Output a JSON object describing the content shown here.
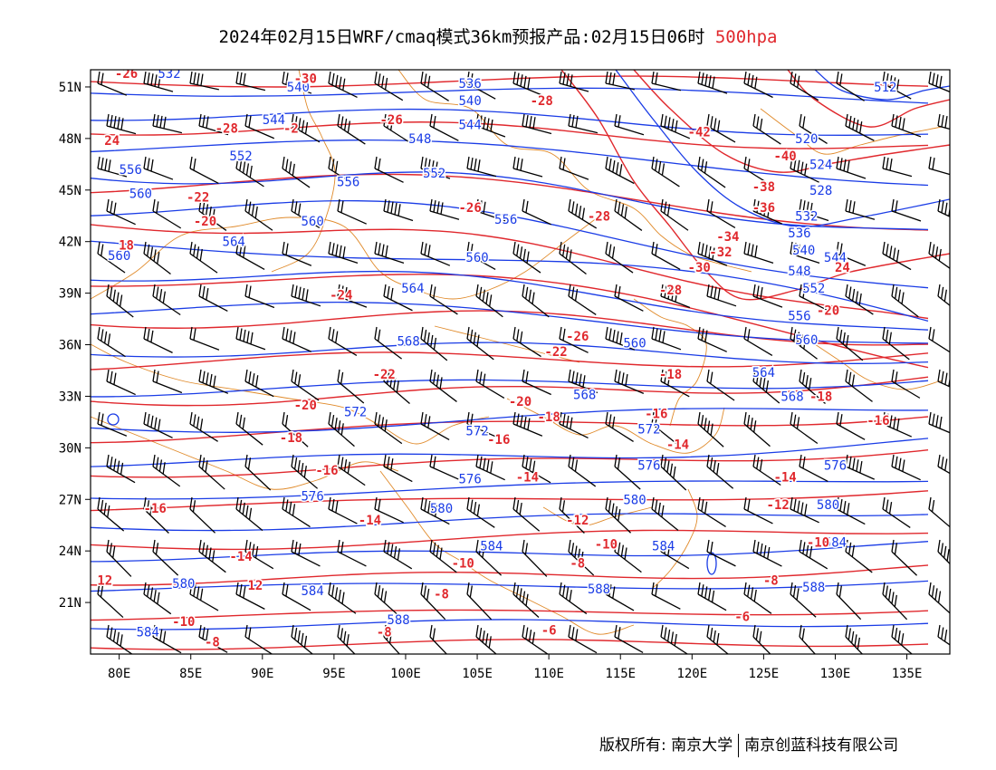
{
  "title": {
    "main": "2024年02月15日WRF/cmaq模式36km预报产品:02月15日06时",
    "level": "500hpa"
  },
  "footer": {
    "copyright_label": "版权所有:",
    "org1": "南京大学",
    "org2": "南京创蓝科技有限公司"
  },
  "colors": {
    "height_contour": "#1a3ce6",
    "temperature_contour": "#e0282d",
    "boundary": "#e08a2a",
    "wind_barb": "#000000"
  },
  "map": {
    "lon_range": [
      78,
      138
    ],
    "lat_range": [
      18,
      52
    ],
    "lon_ticks": [
      {
        "value": 80,
        "label": "80E"
      },
      {
        "value": 85,
        "label": "85E"
      },
      {
        "value": 90,
        "label": "90E"
      },
      {
        "value": 95,
        "label": "95E"
      },
      {
        "value": 100,
        "label": "100E"
      },
      {
        "value": 105,
        "label": "105E"
      },
      {
        "value": 110,
        "label": "110E"
      },
      {
        "value": 115,
        "label": "115E"
      },
      {
        "value": 120,
        "label": "120E"
      },
      {
        "value": 125,
        "label": "125E"
      },
      {
        "value": 130,
        "label": "130E"
      },
      {
        "value": 135,
        "label": "135E"
      }
    ],
    "lat_ticks": [
      {
        "value": 21,
        "label": "21N"
      },
      {
        "value": 24,
        "label": "24N"
      },
      {
        "value": 27,
        "label": "27N"
      },
      {
        "value": 30,
        "label": "30N"
      },
      {
        "value": 33,
        "label": "33N"
      },
      {
        "value": 36,
        "label": "36N"
      },
      {
        "value": 39,
        "label": "39N"
      },
      {
        "value": 42,
        "label": "42N"
      },
      {
        "value": 45,
        "label": "45N"
      },
      {
        "value": 48,
        "label": "48N"
      },
      {
        "value": 51,
        "label": "51N"
      }
    ],
    "height_labels": [
      {
        "lon": 83.5,
        "lat": 51.8,
        "text": "532"
      },
      {
        "lon": 92.5,
        "lat": 51.0,
        "text": "540"
      },
      {
        "lon": 104.5,
        "lat": 51.2,
        "text": "536"
      },
      {
        "lon": 133.5,
        "lat": 51.0,
        "text": "512"
      },
      {
        "lon": 90.8,
        "lat": 49.1,
        "text": "544"
      },
      {
        "lon": 104.5,
        "lat": 50.2,
        "text": "540"
      },
      {
        "lon": 101.0,
        "lat": 48.0,
        "text": "548"
      },
      {
        "lon": 104.5,
        "lat": 48.8,
        "text": "544"
      },
      {
        "lon": 88.5,
        "lat": 47.0,
        "text": "552"
      },
      {
        "lon": 80.8,
        "lat": 46.2,
        "text": "556"
      },
      {
        "lon": 81.5,
        "lat": 44.8,
        "text": "560"
      },
      {
        "lon": 96.0,
        "lat": 45.5,
        "text": "556"
      },
      {
        "lon": 102.0,
        "lat": 46.0,
        "text": "552"
      },
      {
        "lon": 93.5,
        "lat": 43.2,
        "text": "560"
      },
      {
        "lon": 107.0,
        "lat": 43.3,
        "text": "556"
      },
      {
        "lon": 88.0,
        "lat": 42.0,
        "text": "564"
      },
      {
        "lon": 80.0,
        "lat": 41.2,
        "text": "560"
      },
      {
        "lon": 105.0,
        "lat": 41.1,
        "text": "560"
      },
      {
        "lon": 100.5,
        "lat": 39.3,
        "text": "564"
      },
      {
        "lon": 100.2,
        "lat": 36.2,
        "text": "568"
      },
      {
        "lon": 116.0,
        "lat": 36.1,
        "text": "560"
      },
      {
        "lon": 128.0,
        "lat": 48.0,
        "text": "520"
      },
      {
        "lon": 129.0,
        "lat": 46.5,
        "text": "524"
      },
      {
        "lon": 129.0,
        "lat": 45.0,
        "text": "528"
      },
      {
        "lon": 128.0,
        "lat": 43.5,
        "text": "532"
      },
      {
        "lon": 127.5,
        "lat": 42.5,
        "text": "536"
      },
      {
        "lon": 127.8,
        "lat": 41.5,
        "text": "540"
      },
      {
        "lon": 130.0,
        "lat": 41.1,
        "text": "544"
      },
      {
        "lon": 127.5,
        "lat": 40.3,
        "text": "548"
      },
      {
        "lon": 128.5,
        "lat": 39.3,
        "text": "552"
      },
      {
        "lon": 127.5,
        "lat": 37.7,
        "text": "556"
      },
      {
        "lon": 128.0,
        "lat": 36.3,
        "text": "560"
      },
      {
        "lon": 125.0,
        "lat": 34.4,
        "text": "564"
      },
      {
        "lon": 127.0,
        "lat": 33.0,
        "text": "568"
      },
      {
        "lon": 112.5,
        "lat": 33.1,
        "text": "568"
      },
      {
        "lon": 96.5,
        "lat": 32.1,
        "text": "572"
      },
      {
        "lon": 105.0,
        "lat": 31.0,
        "text": "572"
      },
      {
        "lon": 117.0,
        "lat": 31.1,
        "text": "572"
      },
      {
        "lon": 117.0,
        "lat": 29.0,
        "text": "576"
      },
      {
        "lon": 130.0,
        "lat": 29.0,
        "text": "576"
      },
      {
        "lon": 93.5,
        "lat": 27.2,
        "text": "576"
      },
      {
        "lon": 104.5,
        "lat": 28.2,
        "text": "576"
      },
      {
        "lon": 102.5,
        "lat": 26.5,
        "text": "580"
      },
      {
        "lon": 116.0,
        "lat": 27.0,
        "text": "580"
      },
      {
        "lon": 129.5,
        "lat": 26.7,
        "text": "580"
      },
      {
        "lon": 106.0,
        "lat": 24.3,
        "text": "584"
      },
      {
        "lon": 118.0,
        "lat": 24.3,
        "text": "584"
      },
      {
        "lon": 130.0,
        "lat": 24.5,
        "text": "584"
      },
      {
        "lon": 84.5,
        "lat": 22.1,
        "text": "580"
      },
      {
        "lon": 93.5,
        "lat": 21.7,
        "text": "584"
      },
      {
        "lon": 113.5,
        "lat": 21.8,
        "text": "588"
      },
      {
        "lon": 128.5,
        "lat": 21.9,
        "text": "588"
      },
      {
        "lon": 99.5,
        "lat": 20.0,
        "text": "588"
      },
      {
        "lon": 82.0,
        "lat": 19.3,
        "text": "584"
      }
    ],
    "temp_labels": [
      {
        "lon": 80.5,
        "lat": 51.8,
        "text": "-26"
      },
      {
        "lon": 93.0,
        "lat": 51.5,
        "text": "-30"
      },
      {
        "lon": 109.5,
        "lat": 50.2,
        "text": "-28"
      },
      {
        "lon": 87.5,
        "lat": 48.6,
        "text": "-28"
      },
      {
        "lon": 92.0,
        "lat": 48.6,
        "text": "-2"
      },
      {
        "lon": 99.0,
        "lat": 49.1,
        "text": "-26"
      },
      {
        "lon": 79.5,
        "lat": 47.9,
        "text": "24"
      },
      {
        "lon": 85.5,
        "lat": 44.6,
        "text": "-22"
      },
      {
        "lon": 86.0,
        "lat": 43.2,
        "text": "-20"
      },
      {
        "lon": 80.5,
        "lat": 41.8,
        "text": "18"
      },
      {
        "lon": 95.5,
        "lat": 38.9,
        "text": "-24"
      },
      {
        "lon": 104.5,
        "lat": 44.0,
        "text": "-26"
      },
      {
        "lon": 120.5,
        "lat": 48.4,
        "text": "-42"
      },
      {
        "lon": 126.5,
        "lat": 47.0,
        "text": "-40"
      },
      {
        "lon": 125.0,
        "lat": 45.2,
        "text": "-38"
      },
      {
        "lon": 125.0,
        "lat": 44.0,
        "text": "-36"
      },
      {
        "lon": 122.5,
        "lat": 42.3,
        "text": "-34"
      },
      {
        "lon": 122.0,
        "lat": 41.4,
        "text": "-32"
      },
      {
        "lon": 120.5,
        "lat": 40.5,
        "text": "-30"
      },
      {
        "lon": 118.5,
        "lat": 39.2,
        "text": "-28"
      },
      {
        "lon": 113.5,
        "lat": 43.5,
        "text": "-28"
      },
      {
        "lon": 130.5,
        "lat": 40.5,
        "text": "24"
      },
      {
        "lon": 129.5,
        "lat": 38.0,
        "text": "-20"
      },
      {
        "lon": 129.0,
        "lat": 33.0,
        "text": "-18"
      },
      {
        "lon": 112.0,
        "lat": 36.5,
        "text": "-26"
      },
      {
        "lon": 110.5,
        "lat": 35.6,
        "text": "-22"
      },
      {
        "lon": 98.5,
        "lat": 34.3,
        "text": "-22"
      },
      {
        "lon": 118.5,
        "lat": 34.3,
        "text": "-18"
      },
      {
        "lon": 93.0,
        "lat": 32.5,
        "text": "-20"
      },
      {
        "lon": 108.0,
        "lat": 32.7,
        "text": "-20"
      },
      {
        "lon": 110.0,
        "lat": 31.8,
        "text": "-18"
      },
      {
        "lon": 117.5,
        "lat": 32.0,
        "text": "-16"
      },
      {
        "lon": 92.0,
        "lat": 30.6,
        "text": "-18"
      },
      {
        "lon": 106.5,
        "lat": 30.5,
        "text": "-16"
      },
      {
        "lon": 119.0,
        "lat": 30.2,
        "text": "-14"
      },
      {
        "lon": 133.0,
        "lat": 31.6,
        "text": "-16"
      },
      {
        "lon": 94.5,
        "lat": 28.7,
        "text": "-16"
      },
      {
        "lon": 108.5,
        "lat": 28.3,
        "text": "-14"
      },
      {
        "lon": 126.5,
        "lat": 28.3,
        "text": "-14"
      },
      {
        "lon": 82.5,
        "lat": 26.5,
        "text": "-16"
      },
      {
        "lon": 97.5,
        "lat": 25.8,
        "text": "-14"
      },
      {
        "lon": 112.0,
        "lat": 25.8,
        "text": "-12"
      },
      {
        "lon": 126.0,
        "lat": 26.7,
        "text": "-12"
      },
      {
        "lon": 88.5,
        "lat": 23.7,
        "text": "-14"
      },
      {
        "lon": 104.0,
        "lat": 23.3,
        "text": "-10"
      },
      {
        "lon": 114.0,
        "lat": 24.4,
        "text": "-10"
      },
      {
        "lon": 128.8,
        "lat": 24.5,
        "text": "-10"
      },
      {
        "lon": 79.0,
        "lat": 22.3,
        "text": "12"
      },
      {
        "lon": 89.5,
        "lat": 22.0,
        "text": "12"
      },
      {
        "lon": 112.0,
        "lat": 23.3,
        "text": "-8"
      },
      {
        "lon": 125.5,
        "lat": 22.3,
        "text": "-8"
      },
      {
        "lon": 102.5,
        "lat": 21.5,
        "text": "-8"
      },
      {
        "lon": 84.5,
        "lat": 19.9,
        "text": "-10"
      },
      {
        "lon": 86.5,
        "lat": 18.7,
        "text": "-8"
      },
      {
        "lon": 98.5,
        "lat": 19.3,
        "text": "-8"
      },
      {
        "lon": 110.0,
        "lat": 19.4,
        "text": "-6"
      },
      {
        "lon": 123.5,
        "lat": 20.2,
        "text": "-6"
      }
    ]
  }
}
